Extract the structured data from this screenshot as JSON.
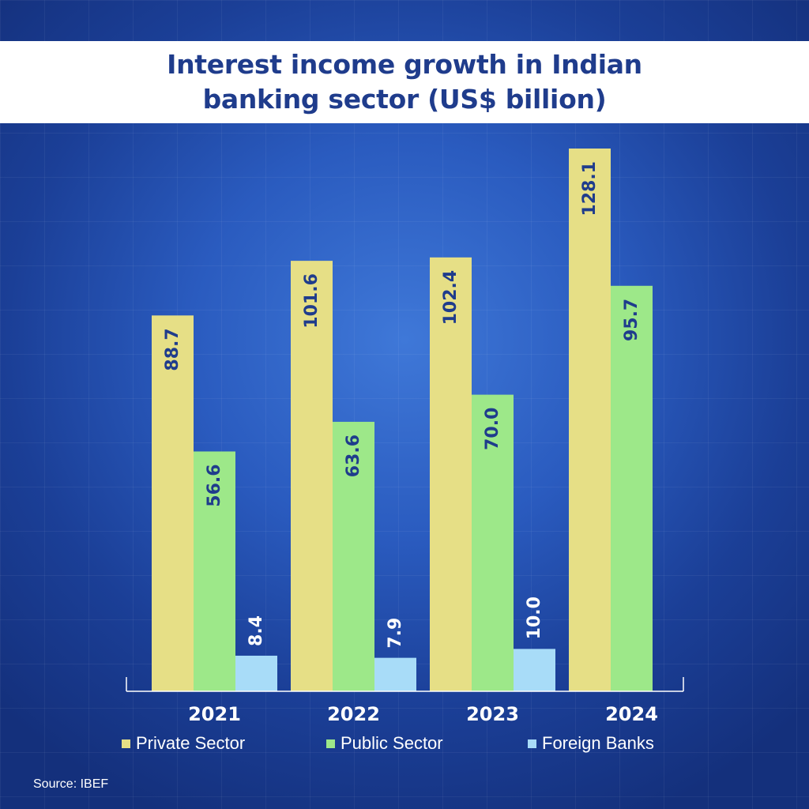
{
  "title_lines": [
    "Interest income growth in Indian",
    "banking sector (US$ billion)"
  ],
  "source": "Source: IBEF",
  "chart_data": {
    "type": "bar",
    "title": "Interest income growth in Indian banking sector (US$ billion)",
    "categories": [
      "2021",
      "2022",
      "2023",
      "2024"
    ],
    "series": [
      {
        "name": "Private Sector",
        "color": "#e6df86",
        "values": [
          88.7,
          101.6,
          102.4,
          128.1
        ],
        "labels": [
          "88.7",
          "101.6",
          "102.4",
          "128.1"
        ]
      },
      {
        "name": "Public Sector",
        "color": "#9de889",
        "values": [
          56.6,
          63.6,
          70.0,
          95.7
        ],
        "labels": [
          "56.6",
          "63.6",
          "70.0",
          "95.7"
        ]
      },
      {
        "name": "Foreign Banks",
        "color": "#a8dcf8",
        "values": [
          8.4,
          7.9,
          10.0,
          null
        ],
        "labels": [
          "8.4",
          "7.9",
          "10.0",
          ""
        ]
      }
    ],
    "xlabel": "",
    "ylabel": "",
    "ylim": [
      0,
      128.1
    ],
    "grid": false,
    "legend_position": "bottom",
    "label_color_inside": "#1f3c8c",
    "label_color_outside": "#ffffff"
  }
}
